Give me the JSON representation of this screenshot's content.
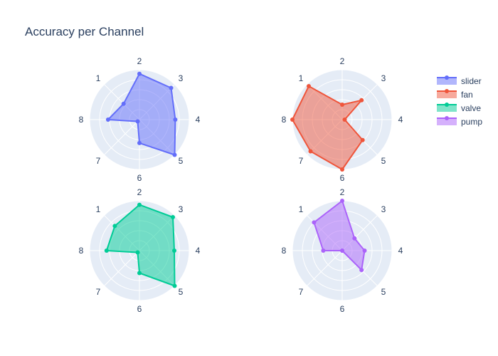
{
  "chart_data": {
    "type": "radar",
    "title": "Accuracy per Channel",
    "axes": [
      "1",
      "2",
      "3",
      "4",
      "5",
      "6",
      "7",
      "8"
    ],
    "radial_range": [
      0,
      1
    ],
    "radial_ticks": [
      0.2,
      0.4,
      0.6,
      0.8,
      1.0
    ],
    "grid": true,
    "legend_position": "top-right",
    "series": [
      {
        "name": "slider",
        "color": "#636efa",
        "values": [
          0.45,
          0.92,
          0.9,
          0.72,
          1.0,
          0.47,
          0.05,
          0.63
        ]
      },
      {
        "name": "fan",
        "color": "#ef553b",
        "values": [
          0.95,
          0.3,
          0.55,
          0.05,
          0.58,
          1.0,
          0.9,
          1.0
        ]
      },
      {
        "name": "valve",
        "color": "#00cc96",
        "values": [
          0.7,
          0.92,
          0.95,
          0.7,
          1.0,
          0.45,
          0.05,
          0.66
        ]
      },
      {
        "name": "pump",
        "color": "#ab63fa",
        "values": [
          0.8,
          1.0,
          0.35,
          0.45,
          0.55,
          0.0,
          0.0,
          0.38
        ]
      }
    ]
  }
}
